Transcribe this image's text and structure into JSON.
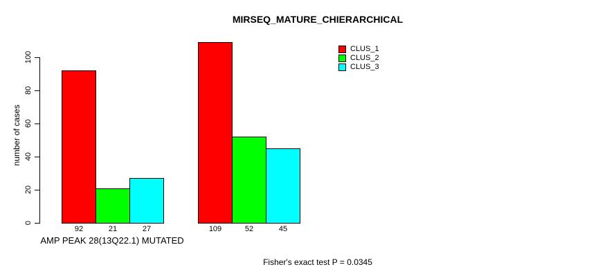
{
  "figure": {
    "background": "#FFFFFF",
    "text_color": "#000000"
  },
  "chart_data": {
    "type": "bar",
    "title": "MIRSEQ_MATURE_CHIERARCHICAL",
    "ylabel": "number of cases",
    "xlabel": "AMP PEAK 28(13Q22.1) MUTATED",
    "annotation": "Fisher's exact test P = 0.0345",
    "ylim": [
      0,
      100
    ],
    "yticks": [
      0,
      20,
      40,
      60,
      80,
      100
    ],
    "grid": false,
    "axis_color": "#000000",
    "bar_border_color": "#000000",
    "legend": {
      "position": "top-right-inside",
      "entries": [
        {
          "label": "CLUS_1",
          "color": "#FF0000"
        },
        {
          "label": "CLUS_2",
          "color": "#00FF00"
        },
        {
          "label": "CLUS_3",
          "color": "#00FFFF"
        }
      ]
    },
    "groups": [
      {
        "bar_labels": [
          "92",
          "21",
          "27"
        ]
      },
      {
        "bar_labels": [
          "109",
          "52",
          "45"
        ]
      }
    ],
    "series": [
      {
        "name": "CLUS_1",
        "color": "#FF0000",
        "values": [
          92,
          109
        ]
      },
      {
        "name": "CLUS_2",
        "color": "#00FF00",
        "values": [
          21,
          52
        ]
      },
      {
        "name": "CLUS_3",
        "color": "#00FFFF",
        "values": [
          27,
          45
        ]
      }
    ]
  }
}
